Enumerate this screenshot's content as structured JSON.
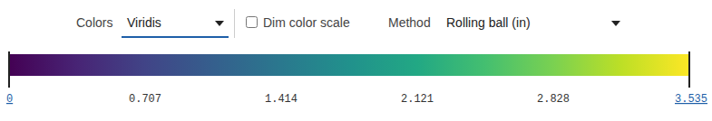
{
  "controls": {
    "colors_label": "Colors",
    "colors_value": "Viridis",
    "dim_label": "Dim color scale",
    "dim_checked": false,
    "method_label": "Method",
    "method_value": "Rolling ball (in)"
  },
  "chart_data": {
    "type": "colorbar",
    "colorscale": "Viridis",
    "xlim": [
      0,
      3.535
    ],
    "xticks": [
      0,
      0.707,
      1.414,
      2.121,
      2.828,
      3.535
    ]
  }
}
